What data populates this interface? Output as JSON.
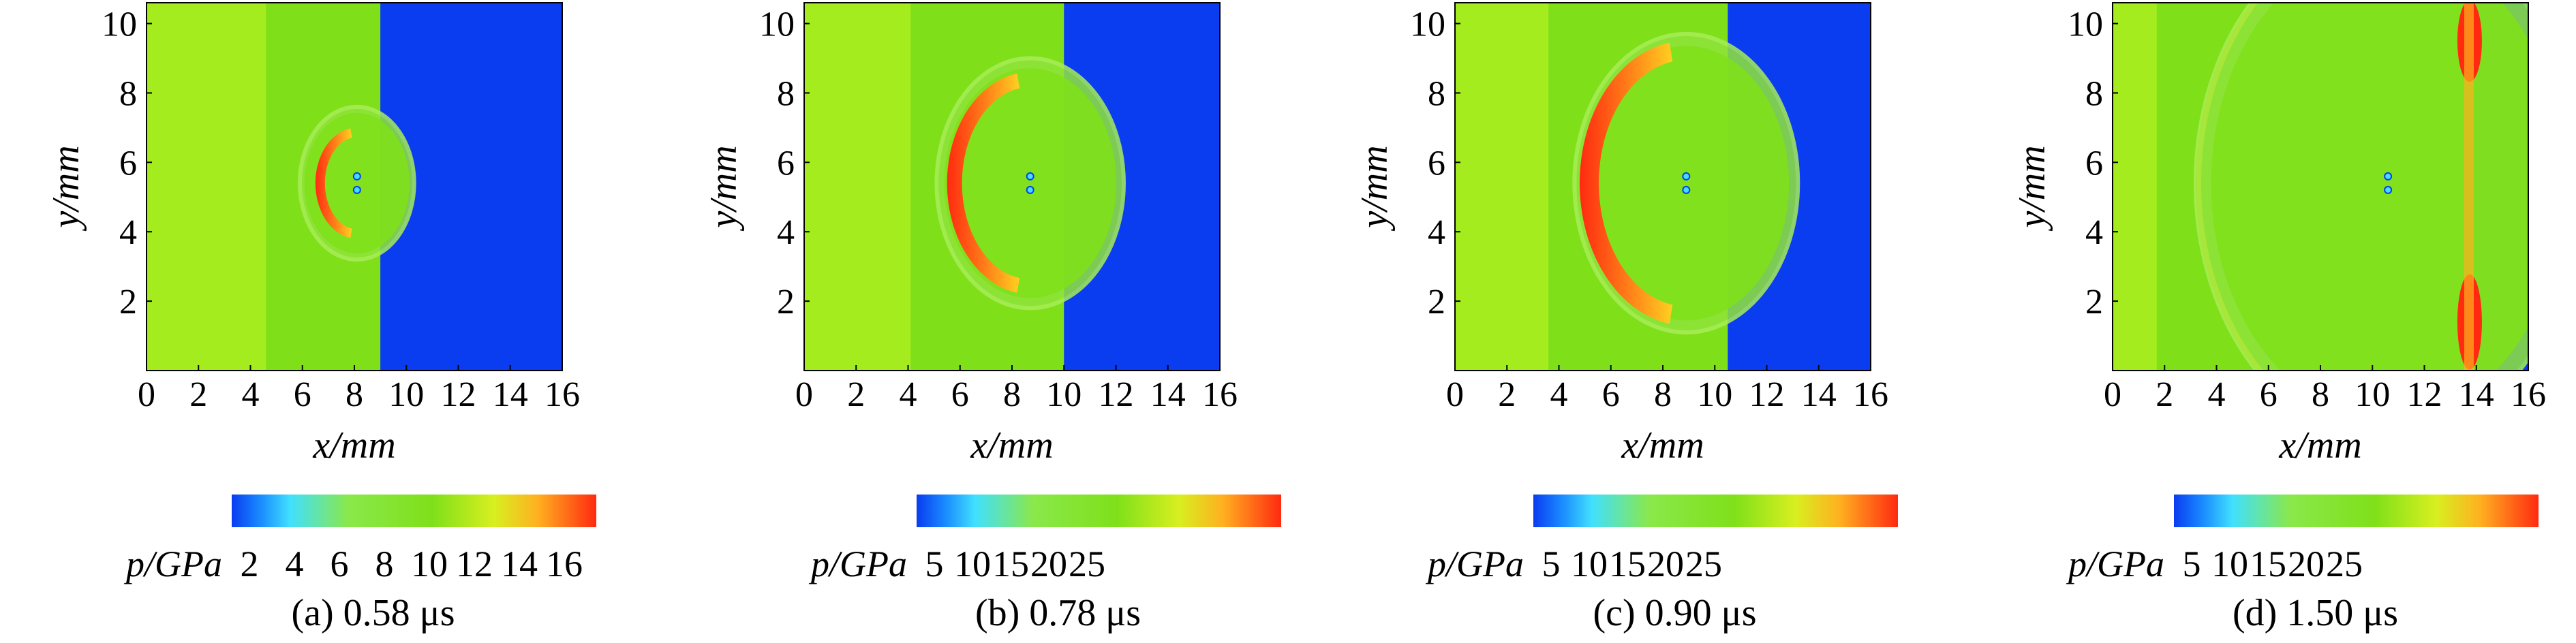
{
  "chart_data": [
    {
      "type": "heatmap",
      "caption": "(a) 0.58 μs",
      "xlabel": "x/mm",
      "ylabel": "y/mm",
      "xlim": [
        0,
        16
      ],
      "ylim": [
        0,
        10.6
      ],
      "xticks": [
        "0",
        "2",
        "4",
        "6",
        "8",
        "10",
        "12",
        "14",
        "16"
      ],
      "yticks": [
        "2",
        "4",
        "6",
        "8",
        "10"
      ],
      "colorbar": {
        "label": "p/GPa",
        "ticks": [
          "2",
          "4",
          "6",
          "8",
          "10",
          "12",
          "14",
          "16"
        ]
      },
      "features": {
        "interface_x": 9.0,
        "center": [
          8.1,
          5.4
        ],
        "wave_radius": 1.6,
        "outer_radius": 2.2,
        "lighter_region_x": [
          0,
          4.6
        ]
      }
    },
    {
      "type": "heatmap",
      "caption": "(b) 0.78 μs",
      "xlabel": "x/mm",
      "ylabel": "y/mm",
      "xlim": [
        0,
        16
      ],
      "ylim": [
        0,
        10.6
      ],
      "xticks": [
        "0",
        "2",
        "4",
        "6",
        "8",
        "10",
        "12",
        "14",
        "16"
      ],
      "yticks": [
        "2",
        "4",
        "6",
        "8",
        "10"
      ],
      "colorbar": {
        "label": "p/GPa",
        "ticks": [
          "5",
          "10",
          "15",
          "20",
          "25"
        ]
      },
      "features": {
        "interface_x": 10.0,
        "center": [
          8.7,
          5.4
        ],
        "wave_radius": 3.2,
        "outer_radius": 3.6,
        "lighter_region_x": [
          0,
          4.1
        ]
      }
    },
    {
      "type": "heatmap",
      "caption": "(c) 0.90 μs",
      "xlabel": "x/mm",
      "ylabel": "y/mm",
      "xlim": [
        0,
        16
      ],
      "ylim": [
        0,
        10.6
      ],
      "xticks": [
        "0",
        "2",
        "4",
        "6",
        "8",
        "10",
        "12",
        "14",
        "16"
      ],
      "yticks": [
        "2",
        "4",
        "6",
        "8",
        "10"
      ],
      "colorbar": {
        "label": "p/GPa",
        "ticks": [
          "5",
          "10",
          "15",
          "20",
          "25"
        ]
      },
      "features": {
        "interface_x": 10.5,
        "center": [
          8.9,
          5.4
        ],
        "wave_radius": 4.1,
        "outer_radius": 4.3,
        "lighter_region_x": [
          0,
          3.6
        ]
      }
    },
    {
      "type": "heatmap",
      "caption": "(d) 1.50 μs",
      "xlabel": "x/mm",
      "ylabel": "y/mm",
      "xlim": [
        0,
        16
      ],
      "ylim": [
        0,
        10.6
      ],
      "xticks": [
        "0",
        "2",
        "4",
        "6",
        "8",
        "10",
        "12",
        "14",
        "16"
      ],
      "yticks": [
        "2",
        "4",
        "6",
        "8",
        "10"
      ],
      "colorbar": {
        "label": "p/GPa",
        "ticks": [
          "5",
          "10",
          "15",
          "20",
          "25"
        ]
      },
      "features": {
        "interface_x": 13.9,
        "center": [
          10.6,
          5.4
        ],
        "wave_radius": 7.4,
        "outer_radius": 7.4,
        "lighter_region_x": [
          0,
          1.7
        ]
      }
    }
  ],
  "colors": {
    "blue": "#0a3cf0",
    "green": "#7fe01a",
    "light_green": "#a4ec1e",
    "yellow_green": "#c9e81e",
    "red": "#ff2a10",
    "cyan": "#40e0ff"
  }
}
